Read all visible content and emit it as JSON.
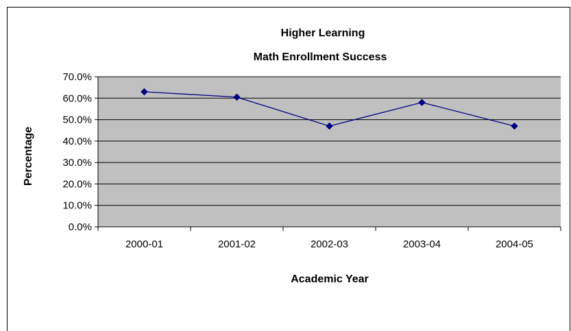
{
  "chart_data": {
    "type": "line",
    "title": "Higher Learning",
    "subtitle": "Math Enrollment Success",
    "xlabel": "Academic Year",
    "ylabel": "Percentage",
    "categories": [
      "2000-01",
      "2001-02",
      "2002-03",
      "2003-04",
      "2004-05"
    ],
    "series": [
      {
        "values": [
          63.0,
          60.5,
          47.0,
          58.0,
          47.0
        ]
      }
    ],
    "ylim": [
      0,
      70
    ],
    "yticks": [
      "0.0%",
      "10.0%",
      "20.0%",
      "30.0%",
      "40.0%",
      "50.0%",
      "60.0%",
      "70.0%"
    ],
    "grid": true,
    "legend": "none",
    "colors": {
      "plot_background": "#c0c0c0",
      "line": "#000080",
      "marker": "#000080",
      "gridline": "#000000"
    }
  }
}
